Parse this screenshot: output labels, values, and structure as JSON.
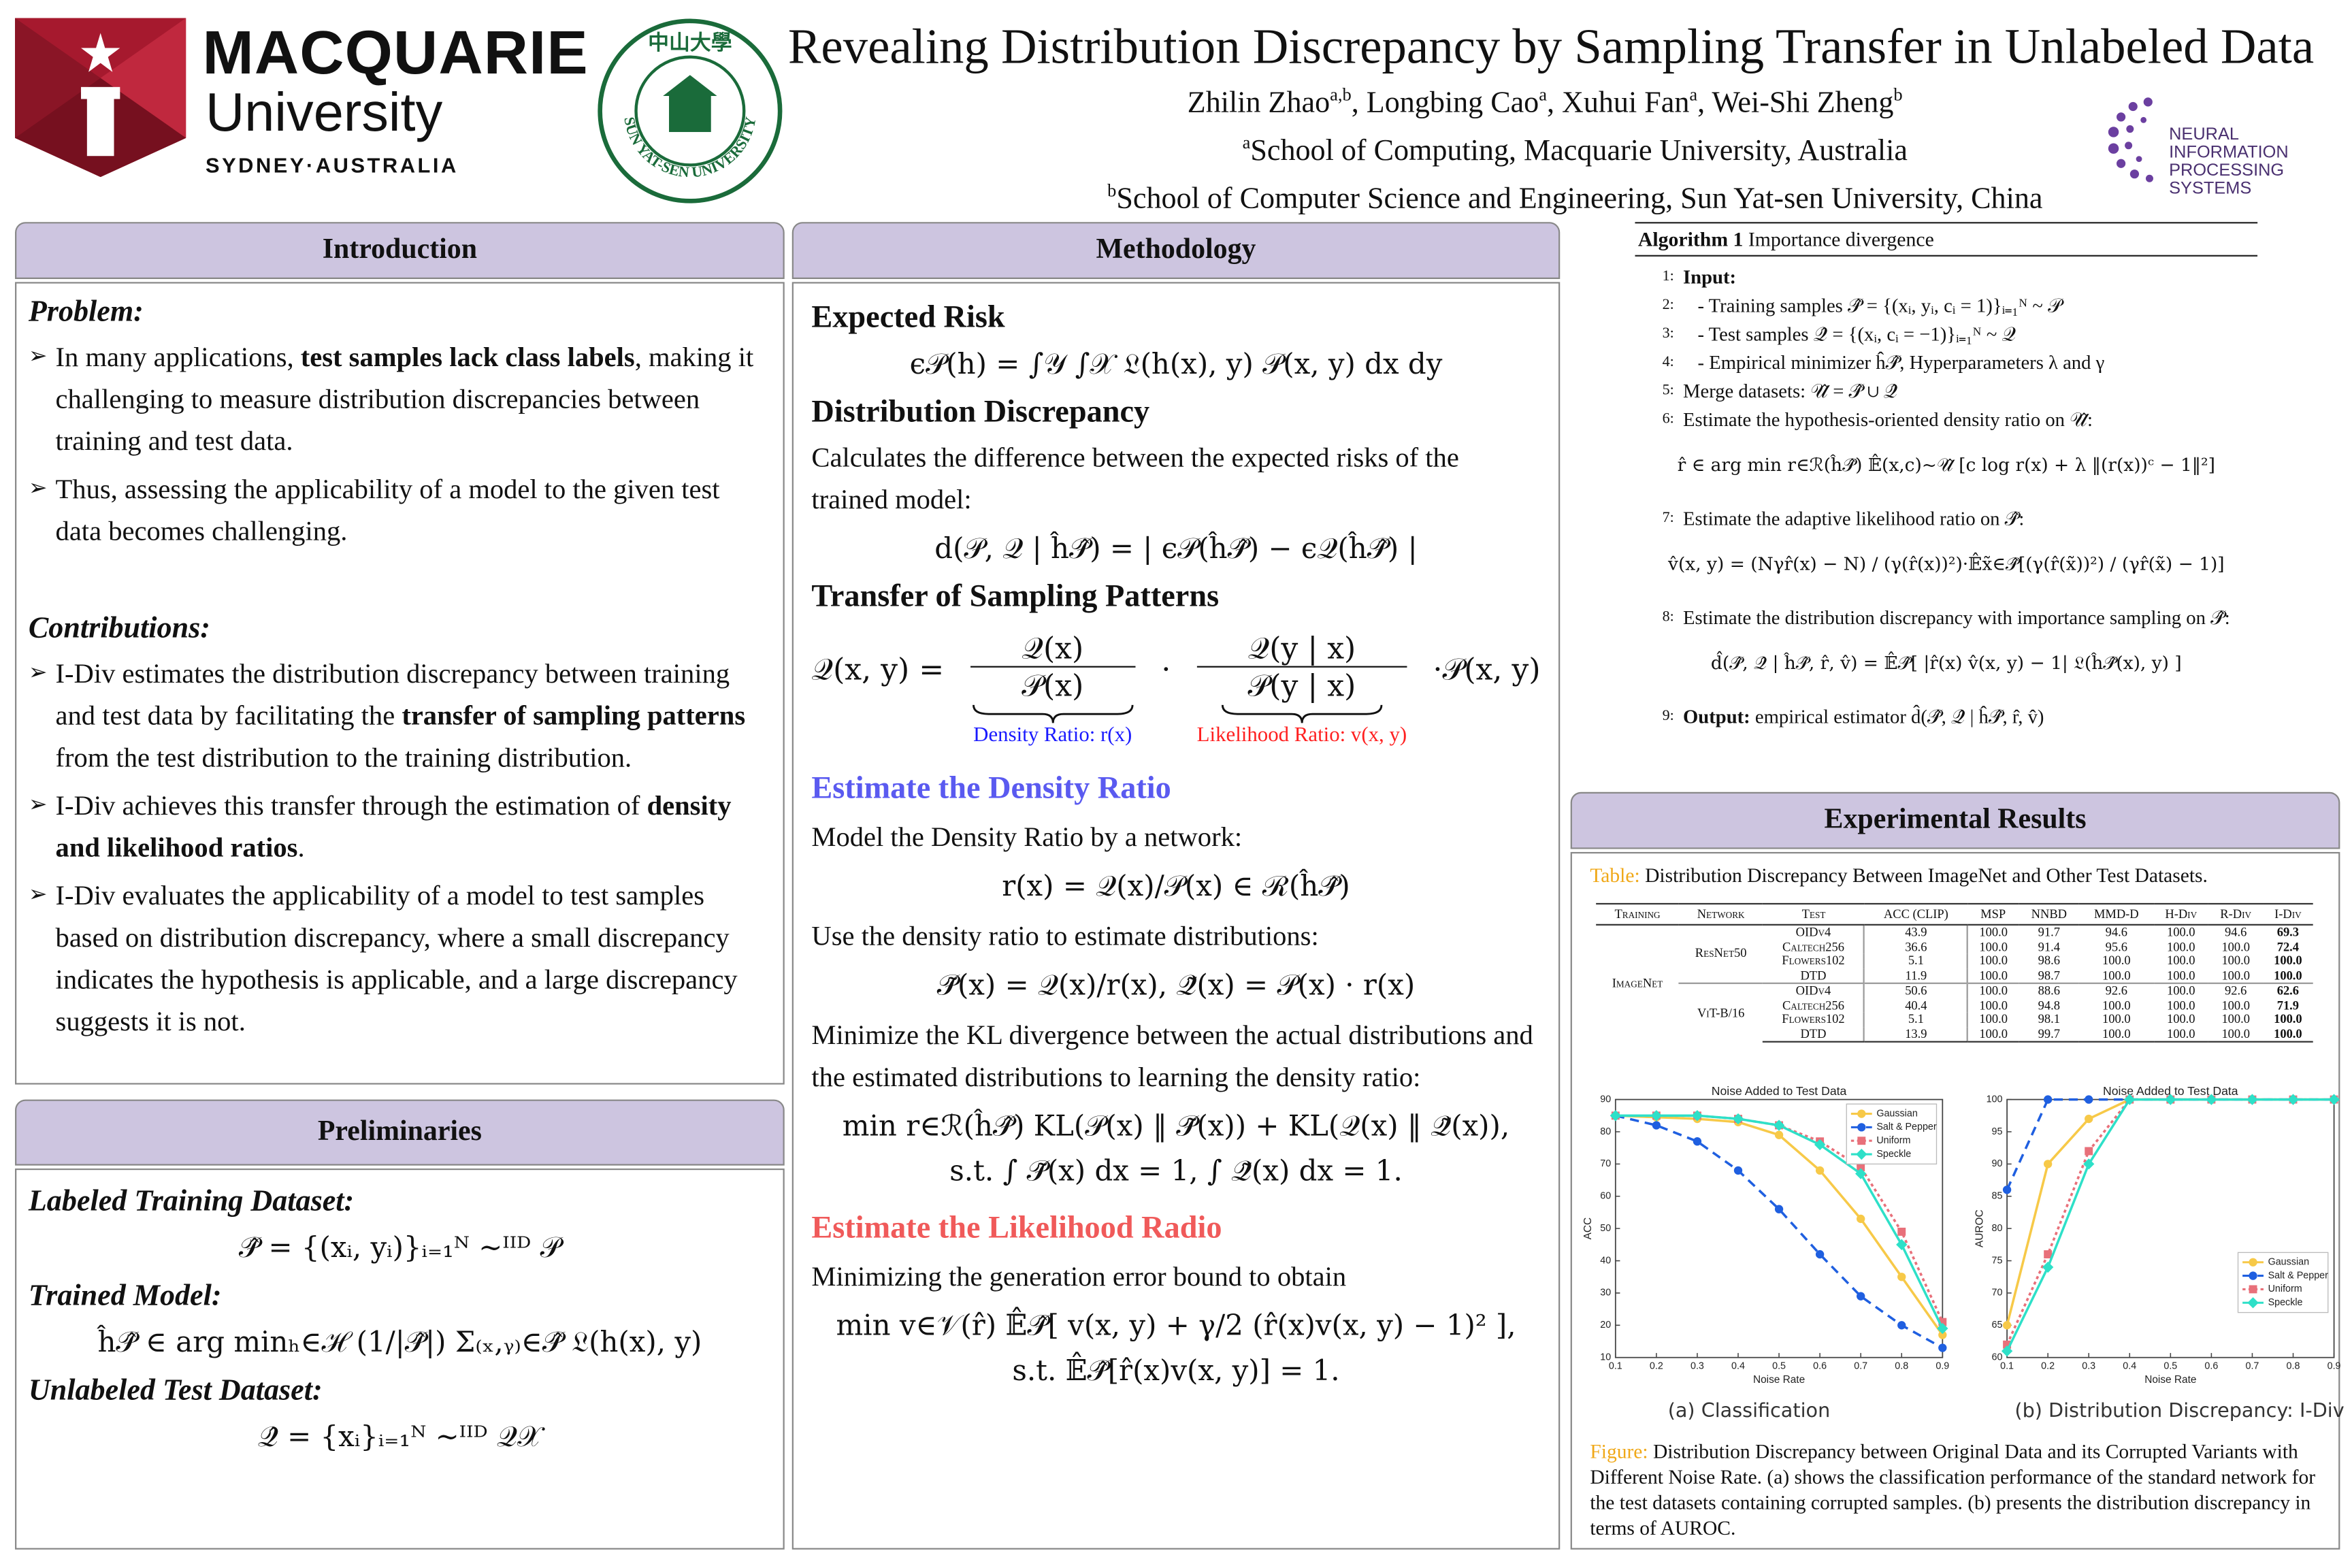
{
  "header": {
    "title": "Revealing Distribution Discrepancy by Sampling Transfer in Unlabeled Data",
    "authors": [
      {
        "name": "Zhilin Zhao",
        "aff": "a,b"
      },
      {
        "name": "Longbing Cao",
        "aff": "a"
      },
      {
        "name": "Xuhui Fan",
        "aff": "a"
      },
      {
        "name": "Wei-Shi Zheng",
        "aff": "b"
      }
    ],
    "separator": ", ",
    "affiliations": [
      {
        "mark": "a",
        "text": "School of Computing, Macquarie University, Australia"
      },
      {
        "mark": "b",
        "text": "School of Computer Science and Engineering, Sun Yat-sen University, China"
      }
    ],
    "logos": {
      "macquarie": [
        "MACQUARIE",
        "University",
        "SYDNEY·AUSTRALIA"
      ],
      "sysu": [
        "中山大學",
        "SUN YAT-SEN UNIVERSITY"
      ],
      "neurips": [
        "NEURAL INFORMATION",
        "PROCESSING SYSTEMS"
      ]
    }
  },
  "introduction": {
    "heading": "Introduction",
    "problem": {
      "heading": "Problem:",
      "bullets": [
        [
          "In many applications, ",
          "test samples lack class labels",
          ", making it challenging to measure distribution discrepancies between training and test data."
        ],
        [
          "Thus, assessing the applicability of a model to the given test data becomes challenging."
        ]
      ]
    },
    "contributions": {
      "heading": "Contributions:",
      "bullets": [
        [
          " I-Div estimates the distribution discrepancy between training and test data by facilitating the ",
          "transfer of sampling patterns",
          " from the test distribution to the training distribution."
        ],
        [
          "I-Div achieves this transfer through the estimation of ",
          "density and likelihood ratios",
          "."
        ],
        [
          "I-Div evaluates the applicability of a model to test samples based on distribution discrepancy, where a small discrepancy indicates the hypothesis is applicable, and a large discrepancy suggests it is not."
        ]
      ]
    }
  },
  "preliminaries": {
    "heading": "Preliminaries",
    "items": [
      {
        "heading": "Labeled Training Dataset:",
        "formula": "𝒫̂ = {(xᵢ, yᵢ)}ᵢ₌₁ᴺ ~ᴵᴵᴰ 𝒫"
      },
      {
        "heading": "Trained Model:",
        "formula": "ĥ𝒫̂ ∈ arg minₕ∈ℋ (1/|𝒫̂|) Σ₍ₓ,ᵧ₎∈𝒫̂ 𝔏(h(x), y)"
      },
      {
        "heading": "Unlabeled Test Dataset:",
        "formula": "𝒬̂ = {xᵢ}ᵢ₌₁ᴺ ~ᴵᴵᴰ 𝒬𝒳"
      }
    ]
  },
  "methodology": {
    "heading": "Methodology",
    "blocks": [
      {
        "kind": "heading",
        "text": "Expected Risk"
      },
      {
        "kind": "formula",
        "text": "ϵ𝒫(h) = ∫𝒴 ∫𝒳 𝔏(h(x), y) 𝒫(x, y) dx dy"
      },
      {
        "kind": "heading",
        "text": "Distribution Discrepancy"
      },
      {
        "kind": "text",
        "text": "Calculates the difference between the expected risks of the trained model:"
      },
      {
        "kind": "formula",
        "text": "d(𝒫, 𝒬 | ĥ𝒫̂) = | ϵ𝒫(ĥ𝒫̂) − ϵ𝒬(ĥ𝒫̂) |"
      },
      {
        "kind": "heading",
        "text": "Transfer of Sampling Patterns"
      },
      {
        "kind": "transfer",
        "lhs": "𝒬(x, y) =",
        "dot": "·",
        "rhs": "·𝒫(x, y)",
        "terms": [
          {
            "num": "𝒬(x)",
            "den": "𝒫(x)",
            "label": "Density Ratio: r(x)",
            "color": "#1a1aff"
          },
          {
            "num": "𝒬(y | x)",
            "den": "𝒫(y | x)",
            "label": "Likelihood Ratio: v(x, y)",
            "color": "#ff2020"
          }
        ]
      },
      {
        "kind": "subheading",
        "text": "Estimate the Density Ratio",
        "color": "#5a5af0"
      },
      {
        "kind": "text",
        "text": "Model the Density Ratio by a network:"
      },
      {
        "kind": "formula",
        "text": "r(x) = 𝒬(x)/𝒫(x) ∈ ℛ(ĥ𝒫̂)"
      },
      {
        "kind": "text",
        "text": "Use the density ratio to estimate distributions:"
      },
      {
        "kind": "formula",
        "text": "𝒫̃(x) = 𝒬(x)/r(x),    𝒬̃(x) = 𝒫(x) · r(x)"
      },
      {
        "kind": "text",
        "text": "Minimize the KL divergence between the actual distributions and the estimated distributions to learning the density ratio:"
      },
      {
        "kind": "formula",
        "text": "min r∈ℛ(ĥ𝒫̂)   KL(𝒫(x) ‖ 𝒫̃(x)) + KL(𝒬(x) ‖ 𝒬̃(x)),"
      },
      {
        "kind": "formula",
        "text": "s.t.   ∫ 𝒫̃(x) dx = 1, ∫ 𝒬̃(x) dx = 1."
      },
      {
        "kind": "subheading",
        "text": "Estimate the Likelihood Radio",
        "color": "#f05a5a"
      },
      {
        "kind": "text",
        "text": "Minimizing the generation error bound to obtain"
      },
      {
        "kind": "formula",
        "text": "min v∈𝒱(r̂)   𝔼̂𝒫̂[ v(x, y) + γ/2 (r̂(x)v(x, y) − 1)² ],"
      },
      {
        "kind": "formula",
        "text": "s.t.   𝔼̂𝒫̂[r̂(x)v(x, y)] = 1."
      }
    ]
  },
  "algorithm": {
    "title": "Algorithm 1",
    "name": " Importance divergence",
    "lines": [
      {
        "n": "1:",
        "lead": "Input:"
      },
      {
        "n": "2:",
        "text": "   - Training samples 𝒫̂ = {(xᵢ, yᵢ, cᵢ = 1)}ᵢ₌₁ᴺ ~ 𝒫"
      },
      {
        "n": "3:",
        "text": "   - Test samples 𝒬̂ = {(xᵢ, cᵢ = −1)}ᵢ₌₁ᴺ ~ 𝒬"
      },
      {
        "n": "4:",
        "text": "   - Empirical minimizer ĥ𝒫̂, Hyperparameters λ and γ"
      },
      {
        "n": "5:",
        "text": "Merge datasets: 𝒰̂ = 𝒫̂ ∪ 𝒬̂"
      },
      {
        "n": "6:",
        "text": "Estimate the hypothesis-oriented density ratio on 𝒰̂:"
      },
      {
        "formula": "r̂ ∈ arg min r∈ℛ(ĥ𝒫̂)  𝔼̂(x,c)~𝒰̂ [c log r(x) + λ ‖(r(x))ᶜ − 1‖²]"
      },
      {
        "n": "7:",
        "text": "Estimate the adaptive likelihood ratio on 𝒫̂:"
      },
      {
        "formula": "v̂(x, y) = (Nγr̂(x) − N) / (γ(r̂(x))²)·𝔼̂x̃∈𝒫̂[(γ(r̂(x̃))²) / (γr̂(x̃) − 1)]"
      },
      {
        "n": "8:",
        "text": "Estimate the distribution discrepancy with importance sampling on 𝒫̂:"
      },
      {
        "formula": "d̂(𝒫̂, 𝒬̂ | ĥ𝒫̂, r̂, v̂) = 𝔼̂𝒫̂[ |r̂(x) v̂(x, y) − 1| 𝔏(ĥ𝒫̂(x), y) ]"
      },
      {
        "n": "9:",
        "lead": "Output:",
        "text": " empirical estimator d̂(𝒫̂, 𝒬̂ | ĥ𝒫̂, r̂, v̂)"
      }
    ]
  },
  "results": {
    "heading": "Experimental Results",
    "table_caption": {
      "label": "Table:",
      "text": " Distribution Discrepancy Between ImageNet and Other Test Datasets."
    },
    "table": {
      "columns": [
        "Training",
        "Network",
        "Test",
        "ACC (CLIP)",
        "MSP",
        "NNBD",
        "MMD-D",
        "H-Div",
        "R-Div",
        "I-Div"
      ],
      "training": "ImageNet",
      "groups": [
        {
          "network": "ResNet50",
          "rows": [
            {
              "test": "OIDv4",
              "values": [
                "43.9",
                "100.0",
                "91.7",
                "94.6",
                "100.0",
                "94.6",
                "69.3"
              ]
            },
            {
              "test": "Caltech256",
              "values": [
                "36.6",
                "100.0",
                "91.4",
                "95.6",
                "100.0",
                "100.0",
                "72.4"
              ]
            },
            {
              "test": "Flowers102",
              "values": [
                "5.1",
                "100.0",
                "98.6",
                "100.0",
                "100.0",
                "100.0",
                "100.0"
              ]
            },
            {
              "test": "DTD",
              "values": [
                "11.9",
                "100.0",
                "98.7",
                "100.0",
                "100.0",
                "100.0",
                "100.0"
              ]
            }
          ]
        },
        {
          "network": "ViT-B/16",
          "rows": [
            {
              "test": "OIDv4",
              "values": [
                "50.6",
                "100.0",
                "88.6",
                "92.6",
                "100.0",
                "92.6",
                "62.6"
              ]
            },
            {
              "test": "Caltech256",
              "values": [
                "40.4",
                "100.0",
                "94.8",
                "100.0",
                "100.0",
                "100.0",
                "71.9"
              ]
            },
            {
              "test": "Flowers102",
              "values": [
                "5.1",
                "100.0",
                "98.1",
                "100.0",
                "100.0",
                "100.0",
                "100.0"
              ]
            },
            {
              "test": "DTD",
              "values": [
                "13.9",
                "100.0",
                "99.7",
                "100.0",
                "100.0",
                "100.0",
                "100.0"
              ]
            }
          ]
        }
      ]
    },
    "figure_caption": {
      "label": "Figure:",
      "text": " Distribution Discrepancy between Original Data and its Corrupted Variants with Different Noise Rate. (a) shows the classification performance of the standard network for the test datasets containing corrupted samples. (b) presents the distribution discrepancy in terms of AUROC."
    }
  },
  "chart_data": [
    {
      "type": "line",
      "title": "Noise Added to Test Data",
      "caption": "(a) Classification",
      "xlabel": "Noise Rate",
      "ylabel": "ACC",
      "x": [
        0.1,
        0.2,
        0.3,
        0.4,
        0.5,
        0.6,
        0.7,
        0.8,
        0.9
      ],
      "xlim": [
        0.1,
        0.9
      ],
      "xticks": [
        0.1,
        0.2,
        0.3,
        0.4,
        0.5,
        0.6,
        0.7,
        0.8,
        0.9
      ],
      "ylim": [
        10,
        90
      ],
      "yticks": [
        10,
        20,
        30,
        40,
        50,
        60,
        70,
        80,
        90
      ],
      "grid": false,
      "legend": "upper right",
      "series": [
        {
          "name": "Gaussian",
          "color": "#f7c948",
          "linestyle": "solid",
          "marker": "circle",
          "values": [
            85,
            84.5,
            84,
            83,
            79,
            68,
            53,
            35,
            17
          ]
        },
        {
          "name": "Salt & Pepper",
          "color": "#1f5fe0",
          "linestyle": "dashed",
          "marker": "circle",
          "values": [
            85,
            82,
            77,
            68,
            56,
            42,
            29,
            20,
            13
          ]
        },
        {
          "name": "Uniform",
          "color": "#e8707a",
          "linestyle": "dotted",
          "marker": "square",
          "values": [
            85,
            85,
            85,
            84,
            82,
            77,
            69,
            49,
            21
          ]
        },
        {
          "name": "Speckle",
          "color": "#2ee0c8",
          "linestyle": "solid",
          "marker": "diamond",
          "values": [
            85,
            85,
            85,
            84,
            82,
            76,
            67,
            45,
            19
          ]
        }
      ]
    },
    {
      "type": "line",
      "title": "Noise Added to Test Data",
      "caption": "(b) Distribution Discrepancy: I-Div",
      "xlabel": "Noise Rate",
      "ylabel": "AUROC",
      "x": [
        0.1,
        0.2,
        0.3,
        0.4,
        0.5,
        0.6,
        0.7,
        0.8,
        0.9
      ],
      "xlim": [
        0.1,
        0.9
      ],
      "xticks": [
        0.1,
        0.2,
        0.3,
        0.4,
        0.5,
        0.6,
        0.7,
        0.8,
        0.9
      ],
      "ylim": [
        60,
        100
      ],
      "yticks": [
        60,
        65,
        70,
        75,
        80,
        85,
        90,
        95,
        100
      ],
      "grid": false,
      "legend": "lower right",
      "series": [
        {
          "name": "Gaussian",
          "color": "#f7c948",
          "linestyle": "solid",
          "marker": "circle",
          "values": [
            65,
            90,
            97,
            100,
            100,
            100,
            100,
            100,
            100
          ]
        },
        {
          "name": "Salt & Pepper",
          "color": "#1f5fe0",
          "linestyle": "dashed",
          "marker": "circle",
          "values": [
            86,
            100,
            100,
            100,
            100,
            100,
            100,
            100,
            100
          ]
        },
        {
          "name": "Uniform",
          "color": "#e8707a",
          "linestyle": "dotted",
          "marker": "square",
          "values": [
            62,
            76,
            92,
            100,
            100,
            100,
            100,
            100,
            100
          ]
        },
        {
          "name": "Speckle",
          "color": "#2ee0c8",
          "linestyle": "solid",
          "marker": "diamond",
          "values": [
            61,
            74,
            90,
            100,
            100,
            100,
            100,
            100,
            100
          ]
        }
      ]
    }
  ]
}
